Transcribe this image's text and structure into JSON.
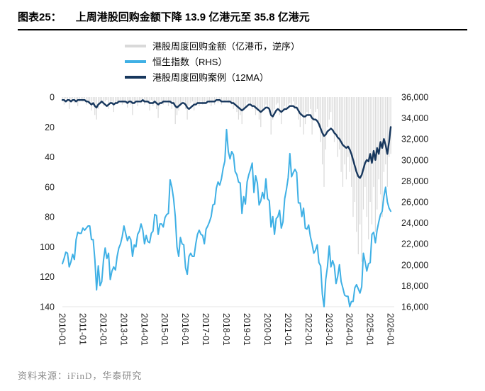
{
  "title": {
    "label": "图表25：",
    "text": "上周港股回购金额下降 13.9 亿港元至 35.8 亿港元"
  },
  "footer": {
    "label": "资料来源：",
    "value": "iFinD，华泰研究"
  },
  "chart_data": {
    "type": "line",
    "title": "上周港股回购金额下降 13.9 亿港元至 35.8 亿港元",
    "grid": false,
    "legend_position": "top-left",
    "x_domain": [
      2010.0,
      2026.17
    ],
    "x_step_months": 1,
    "x_ticks": [
      "2010-01",
      "2011-01",
      "2012-01",
      "2013-01",
      "2014-01",
      "2015-01",
      "2016-01",
      "2017-01",
      "2018-01",
      "2019-01",
      "2020-01",
      "2021-01",
      "2022-01",
      "2023-01",
      "2024-01",
      "2025-01",
      "2026-01"
    ],
    "left_axis": {
      "min": 0,
      "max": 140,
      "step": 20,
      "inverted": true
    },
    "right_axis": {
      "min": 16000,
      "max": 36000,
      "step": 2000
    },
    "series": [
      {
        "name": "港股周度回购金额（亿港币，逆序）",
        "color": "#D9D9D9",
        "axis": "left",
        "style": "spike",
        "line_width": 1.2,
        "values": [
          2,
          5,
          1,
          3,
          8,
          2,
          1,
          4,
          2,
          6,
          3,
          2,
          3,
          1,
          5,
          2,
          4,
          9,
          3,
          12,
          15,
          8,
          5,
          4,
          6,
          3,
          2,
          8,
          4,
          3,
          10,
          5,
          4,
          3,
          2,
          5,
          4,
          2,
          7,
          3,
          5,
          12,
          4,
          3,
          6,
          2,
          4,
          3,
          5,
          3,
          4,
          9,
          2,
          6,
          3,
          8,
          14,
          6,
          4,
          5,
          3,
          2,
          6,
          4,
          8,
          5,
          18,
          12,
          9,
          6,
          4,
          3,
          8,
          15,
          6,
          4,
          3,
          9,
          5,
          4,
          6,
          3,
          5,
          4,
          3,
          2,
          4,
          6,
          3,
          5,
          2,
          4,
          3,
          5,
          2,
          3,
          2,
          4,
          3,
          5,
          8,
          6,
          10,
          15,
          12,
          18,
          9,
          6,
          4,
          3,
          5,
          8,
          6,
          12,
          9,
          15,
          20,
          10,
          7,
          5,
          6,
          10,
          25,
          15,
          8,
          5,
          4,
          12,
          18,
          9,
          6,
          8,
          5,
          4,
          6,
          3,
          8,
          5,
          15,
          20,
          12,
          25,
          18,
          10,
          12,
          8,
          25,
          15,
          10,
          8,
          20,
          30,
          45,
          60,
          35,
          20,
          15,
          10,
          20,
          30,
          25,
          40,
          35,
          50,
          60,
          45,
          55,
          40,
          50,
          60,
          80,
          70,
          90,
          105,
          85,
          110,
          75,
          60,
          80,
          95,
          70,
          85,
          60,
          90,
          75,
          55,
          65,
          80,
          50,
          45,
          60,
          40,
          38
        ]
      },
      {
        "name": "恒生指数（RHS）",
        "color": "#3FB0E5",
        "axis": "right",
        "style": "line",
        "line_width": 2,
        "values": [
          20100,
          20600,
          21200,
          21100,
          19800,
          20300,
          21000,
          20500,
          22400,
          23100,
          23000,
          23000,
          23500,
          23300,
          23500,
          23700,
          23700,
          22400,
          22400,
          20500,
          17600,
          19900,
          18000,
          18400,
          20400,
          21600,
          20600,
          21100,
          18600,
          19400,
          19800,
          19500,
          20800,
          21600,
          22000,
          22700,
          23700,
          23000,
          22300,
          22700,
          22400,
          20800,
          21900,
          21700,
          22900,
          23200,
          23900,
          23300,
          22000,
          22800,
          22200,
          22100,
          23000,
          23200,
          24800,
          24700,
          22900,
          23900,
          23900,
          23600,
          24500,
          24800,
          24900,
          28100,
          27400,
          26300,
          24600,
          21700,
          20800,
          22600,
          22000,
          21900,
          19700,
          19100,
          20800,
          21100,
          20800,
          20800,
          22000,
          22900,
          23300,
          22900,
          22800,
          22000,
          23400,
          23700,
          24100,
          24600,
          25700,
          25800,
          27300,
          27900,
          27600,
          28200,
          29200,
          29900,
          32900,
          30800,
          30100,
          30800,
          30500,
          28900,
          28600,
          27900,
          27800,
          24900,
          26500,
          25800,
          27900,
          28600,
          29100,
          29700,
          26900,
          28500,
          27800,
          25700,
          26100,
          26900,
          26300,
          28200,
          26300,
          26100,
          23600,
          24600,
          22900,
          24400,
          24600,
          25200,
          23500,
          24100,
          26300,
          27200,
          28300,
          30600,
          28400,
          28800,
          29100,
          28800,
          25900,
          25900,
          24600,
          25400,
          23500,
          23400,
          23800,
          22700,
          22000,
          21100,
          21400,
          21900,
          20200,
          19900,
          17200,
          15200,
          18600,
          19800,
          21800,
          19800,
          20400,
          19900,
          18200,
          18900,
          20000,
          18400,
          17800,
          17100,
          17000,
          17000,
          15600,
          16500,
          16500,
          17800,
          18100,
          17700,
          17300,
          17900,
          21100,
          20300,
          19400,
          20100,
          20200,
          22900,
          23100,
          22100,
          23300,
          24100,
          24800,
          25100,
          26500,
          27400,
          26000,
          25400,
          25100
        ]
      },
      {
        "name": "港股周度回购案例（12MA）",
        "color": "#17375D",
        "axis": "left",
        "style": "line",
        "line_width": 2.4,
        "values": [
          2,
          2,
          3,
          2,
          2,
          3,
          2,
          2,
          3,
          2,
          2,
          2,
          2,
          2,
          3,
          3,
          4,
          5,
          4,
          6,
          7,
          5,
          4,
          3,
          4,
          5,
          6,
          5,
          4,
          4,
          5,
          4,
          4,
          3,
          3,
          3,
          3,
          3,
          4,
          3,
          3,
          4,
          4,
          3,
          3,
          3,
          3,
          2,
          3,
          3,
          3,
          4,
          4,
          4,
          3,
          4,
          5,
          4,
          4,
          3,
          3,
          3,
          3,
          3,
          4,
          4,
          6,
          7,
          6,
          5,
          4,
          4,
          5,
          7,
          8,
          7,
          6,
          5,
          5,
          4,
          4,
          4,
          4,
          4,
          4,
          3,
          3,
          3,
          3,
          3,
          2,
          2,
          2,
          3,
          3,
          3,
          3,
          3,
          3,
          4,
          4,
          5,
          6,
          7,
          8,
          9,
          8,
          7,
          6,
          5,
          5,
          6,
          6,
          7,
          8,
          9,
          10,
          9,
          8,
          7,
          7,
          8,
          12,
          13,
          11,
          9,
          8,
          9,
          10,
          9,
          8,
          8,
          7,
          6,
          6,
          6,
          7,
          7,
          9,
          11,
          12,
          13,
          13,
          12,
          12,
          12,
          14,
          15,
          15,
          16,
          18,
          21,
          24,
          26,
          25,
          23,
          22,
          21,
          22,
          24,
          25,
          27,
          28,
          30,
          32,
          33,
          34,
          33,
          35,
          38,
          42,
          46,
          50,
          53,
          54,
          52,
          48,
          44,
          42,
          43,
          38,
          44,
          36,
          42,
          34,
          38,
          30,
          34,
          28,
          32,
          38,
          30,
          20
        ]
      }
    ]
  }
}
